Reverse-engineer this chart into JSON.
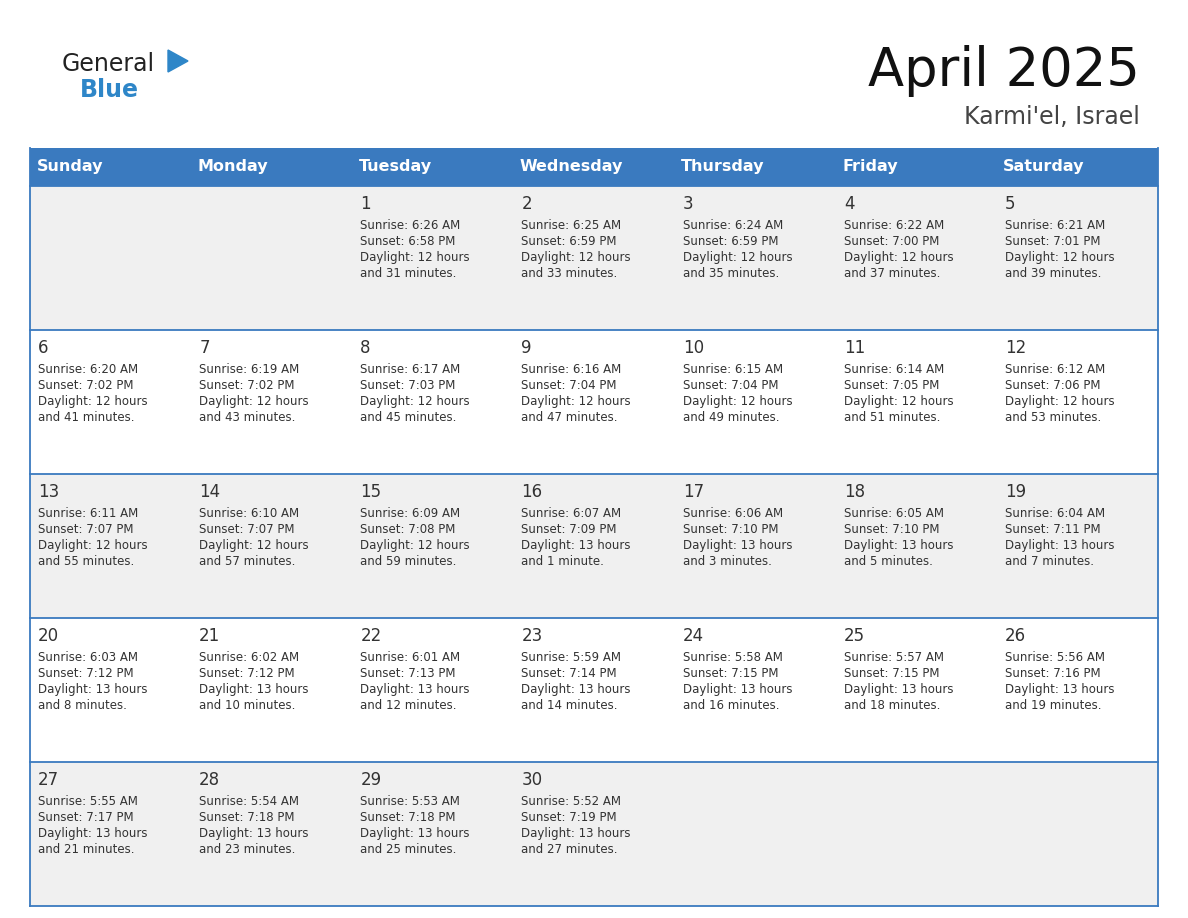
{
  "title": "April 2025",
  "subtitle": "Karmi'el, Israel",
  "header_bg": "#3a7abf",
  "header_text_color": "#ffffff",
  "days_of_week": [
    "Sunday",
    "Monday",
    "Tuesday",
    "Wednesday",
    "Thursday",
    "Friday",
    "Saturday"
  ],
  "row_colors": [
    "#f0f0f0",
    "#ffffff"
  ],
  "border_color": "#3a7abf",
  "text_color": "#333333",
  "calendar_data": [
    [
      {
        "day": "",
        "sunrise": "",
        "sunset": "",
        "daylight": ""
      },
      {
        "day": "",
        "sunrise": "",
        "sunset": "",
        "daylight": ""
      },
      {
        "day": "1",
        "sunrise": "6:26 AM",
        "sunset": "6:58 PM",
        "daylight": "12 hours\nand 31 minutes."
      },
      {
        "day": "2",
        "sunrise": "6:25 AM",
        "sunset": "6:59 PM",
        "daylight": "12 hours\nand 33 minutes."
      },
      {
        "day": "3",
        "sunrise": "6:24 AM",
        "sunset": "6:59 PM",
        "daylight": "12 hours\nand 35 minutes."
      },
      {
        "day": "4",
        "sunrise": "6:22 AM",
        "sunset": "7:00 PM",
        "daylight": "12 hours\nand 37 minutes."
      },
      {
        "day": "5",
        "sunrise": "6:21 AM",
        "sunset": "7:01 PM",
        "daylight": "12 hours\nand 39 minutes."
      }
    ],
    [
      {
        "day": "6",
        "sunrise": "6:20 AM",
        "sunset": "7:02 PM",
        "daylight": "12 hours\nand 41 minutes."
      },
      {
        "day": "7",
        "sunrise": "6:19 AM",
        "sunset": "7:02 PM",
        "daylight": "12 hours\nand 43 minutes."
      },
      {
        "day": "8",
        "sunrise": "6:17 AM",
        "sunset": "7:03 PM",
        "daylight": "12 hours\nand 45 minutes."
      },
      {
        "day": "9",
        "sunrise": "6:16 AM",
        "sunset": "7:04 PM",
        "daylight": "12 hours\nand 47 minutes."
      },
      {
        "day": "10",
        "sunrise": "6:15 AM",
        "sunset": "7:04 PM",
        "daylight": "12 hours\nand 49 minutes."
      },
      {
        "day": "11",
        "sunrise": "6:14 AM",
        "sunset": "7:05 PM",
        "daylight": "12 hours\nand 51 minutes."
      },
      {
        "day": "12",
        "sunrise": "6:12 AM",
        "sunset": "7:06 PM",
        "daylight": "12 hours\nand 53 minutes."
      }
    ],
    [
      {
        "day": "13",
        "sunrise": "6:11 AM",
        "sunset": "7:07 PM",
        "daylight": "12 hours\nand 55 minutes."
      },
      {
        "day": "14",
        "sunrise": "6:10 AM",
        "sunset": "7:07 PM",
        "daylight": "12 hours\nand 57 minutes."
      },
      {
        "day": "15",
        "sunrise": "6:09 AM",
        "sunset": "7:08 PM",
        "daylight": "12 hours\nand 59 minutes."
      },
      {
        "day": "16",
        "sunrise": "6:07 AM",
        "sunset": "7:09 PM",
        "daylight": "13 hours\nand 1 minute."
      },
      {
        "day": "17",
        "sunrise": "6:06 AM",
        "sunset": "7:10 PM",
        "daylight": "13 hours\nand 3 minutes."
      },
      {
        "day": "18",
        "sunrise": "6:05 AM",
        "sunset": "7:10 PM",
        "daylight": "13 hours\nand 5 minutes."
      },
      {
        "day": "19",
        "sunrise": "6:04 AM",
        "sunset": "7:11 PM",
        "daylight": "13 hours\nand 7 minutes."
      }
    ],
    [
      {
        "day": "20",
        "sunrise": "6:03 AM",
        "sunset": "7:12 PM",
        "daylight": "13 hours\nand 8 minutes."
      },
      {
        "day": "21",
        "sunrise": "6:02 AM",
        "sunset": "7:12 PM",
        "daylight": "13 hours\nand 10 minutes."
      },
      {
        "day": "22",
        "sunrise": "6:01 AM",
        "sunset": "7:13 PM",
        "daylight": "13 hours\nand 12 minutes."
      },
      {
        "day": "23",
        "sunrise": "5:59 AM",
        "sunset": "7:14 PM",
        "daylight": "13 hours\nand 14 minutes."
      },
      {
        "day": "24",
        "sunrise": "5:58 AM",
        "sunset": "7:15 PM",
        "daylight": "13 hours\nand 16 minutes."
      },
      {
        "day": "25",
        "sunrise": "5:57 AM",
        "sunset": "7:15 PM",
        "daylight": "13 hours\nand 18 minutes."
      },
      {
        "day": "26",
        "sunrise": "5:56 AM",
        "sunset": "7:16 PM",
        "daylight": "13 hours\nand 19 minutes."
      }
    ],
    [
      {
        "day": "27",
        "sunrise": "5:55 AM",
        "sunset": "7:17 PM",
        "daylight": "13 hours\nand 21 minutes."
      },
      {
        "day": "28",
        "sunrise": "5:54 AM",
        "sunset": "7:18 PM",
        "daylight": "13 hours\nand 23 minutes."
      },
      {
        "day": "29",
        "sunrise": "5:53 AM",
        "sunset": "7:18 PM",
        "daylight": "13 hours\nand 25 minutes."
      },
      {
        "day": "30",
        "sunrise": "5:52 AM",
        "sunset": "7:19 PM",
        "daylight": "13 hours\nand 27 minutes."
      },
      {
        "day": "",
        "sunrise": "",
        "sunset": "",
        "daylight": ""
      },
      {
        "day": "",
        "sunrise": "",
        "sunset": "",
        "daylight": ""
      },
      {
        "day": "",
        "sunrise": "",
        "sunset": "",
        "daylight": ""
      }
    ]
  ],
  "logo_triangle_color": "#2e86c8",
  "logo_blue_color": "#2e86c8"
}
